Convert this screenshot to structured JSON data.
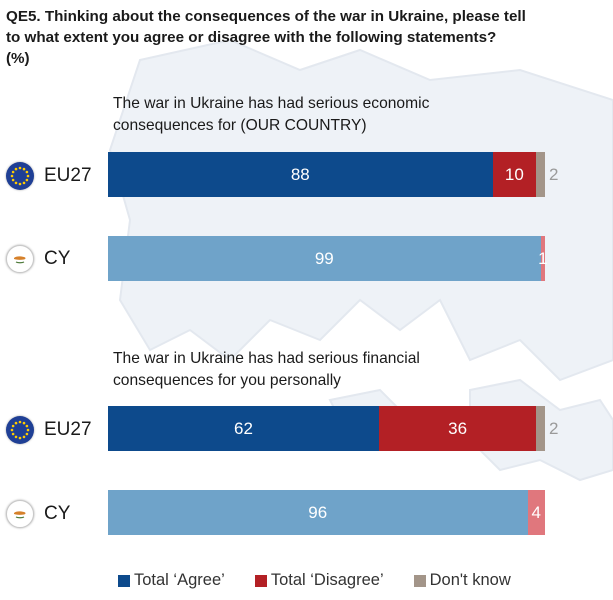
{
  "question": {
    "lines": [
      "QE5. Thinking about the consequences of the war in Ukraine, please tell",
      "to what extent you agree or disagree with the following statements?",
      "(%)"
    ]
  },
  "colors": {
    "agree_eu": "#0d4a8c",
    "agree_cy": "#6fa3c9",
    "disagree_eu": "#b32025",
    "disagree_cy": "#e0777d",
    "dont_know": "#a39589",
    "map": "#eef2f7"
  },
  "rows": {
    "eu_label": "EU27",
    "cy_label": "CY",
    "eu_flag_icon": "eu-flag-icon",
    "cy_flag_icon": "cyprus-flag-icon"
  },
  "legend": {
    "agree": "Total ‘Agree’",
    "disagree": "Total ‘Disagree’",
    "dont_know": "Don't know"
  },
  "chart_data": [
    {
      "type": "bar",
      "orientation": "horizontal",
      "stacked": true,
      "normalized_percent": true,
      "title_lines": [
        "The war in Ukraine has had serious economic",
        "consequences for (OUR COUNTRY)"
      ],
      "categories": [
        "EU27",
        "CY"
      ],
      "series": [
        {
          "name": "Total ‘Agree’",
          "values": [
            88,
            99
          ],
          "labels": [
            "88",
            "99"
          ]
        },
        {
          "name": "Total ‘Disagree’",
          "values": [
            10,
            1
          ],
          "labels": [
            "10",
            "1"
          ]
        },
        {
          "name": "Don't know",
          "values": [
            2,
            0
          ],
          "labels": [
            "2",
            ""
          ]
        }
      ],
      "xlim": [
        0,
        100
      ]
    },
    {
      "type": "bar",
      "orientation": "horizontal",
      "stacked": true,
      "normalized_percent": true,
      "title_lines": [
        "The war in Ukraine has had serious financial",
        "consequences for you personally"
      ],
      "categories": [
        "EU27",
        "CY"
      ],
      "series": [
        {
          "name": "Total ‘Agree’",
          "values": [
            62,
            96
          ],
          "labels": [
            "62",
            "96"
          ]
        },
        {
          "name": "Total ‘Disagree’",
          "values": [
            36,
            4
          ],
          "labels": [
            "36",
            "4"
          ]
        },
        {
          "name": "Don't know",
          "values": [
            2,
            0
          ],
          "labels": [
            "2",
            ""
          ]
        }
      ],
      "xlim": [
        0,
        100
      ]
    }
  ]
}
